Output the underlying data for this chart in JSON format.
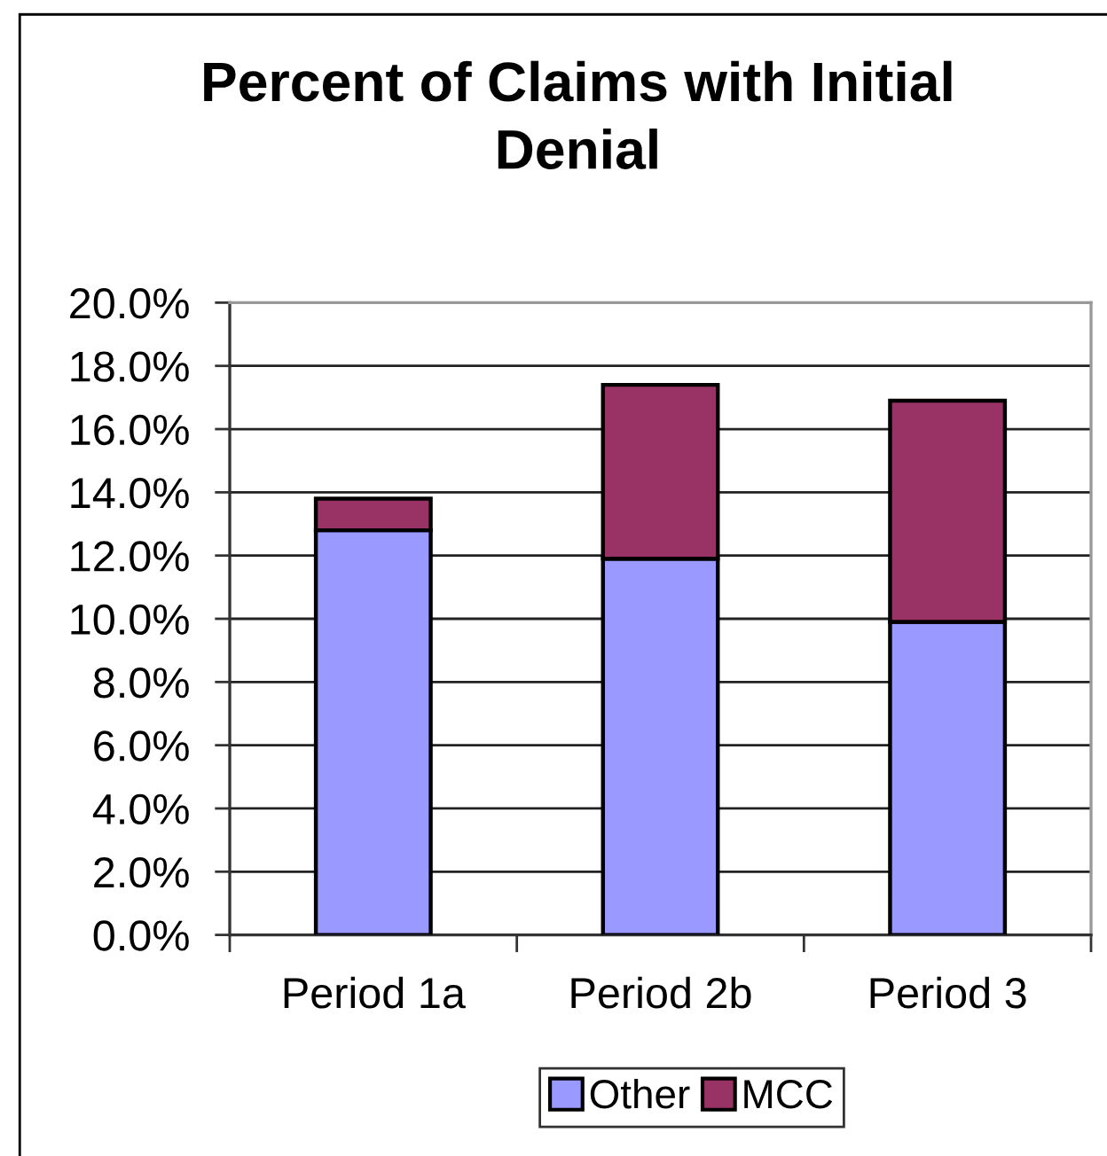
{
  "chart_data": {
    "type": "bar",
    "title": "Percent of Claims with Initial Denial",
    "stacked": true,
    "categories": [
      "Period 1a",
      "Period 2b",
      "Period 3"
    ],
    "series": [
      {
        "name": "Other",
        "color": "#9999ff",
        "values": [
          12.8,
          11.9,
          9.9
        ]
      },
      {
        "name": "MCC",
        "color": "#993366",
        "values": [
          1.0,
          5.5,
          7.0
        ]
      }
    ],
    "ylim": [
      0,
      20
    ],
    "yticks": [
      {
        "value": 0,
        "label": "0.0%"
      },
      {
        "value": 2,
        "label": "2.0%"
      },
      {
        "value": 4,
        "label": "4.0%"
      },
      {
        "value": 6,
        "label": "6.0%"
      },
      {
        "value": 8,
        "label": "8.0%"
      },
      {
        "value": 10,
        "label": "10.0%"
      },
      {
        "value": 12,
        "label": "12.0%"
      },
      {
        "value": 14,
        "label": "14.0%"
      },
      {
        "value": 16,
        "label": "16.0%"
      },
      {
        "value": 18,
        "label": "18.0%"
      },
      {
        "value": 20,
        "label": "20.0%"
      }
    ],
    "grid": "y",
    "legend": "bottom"
  }
}
